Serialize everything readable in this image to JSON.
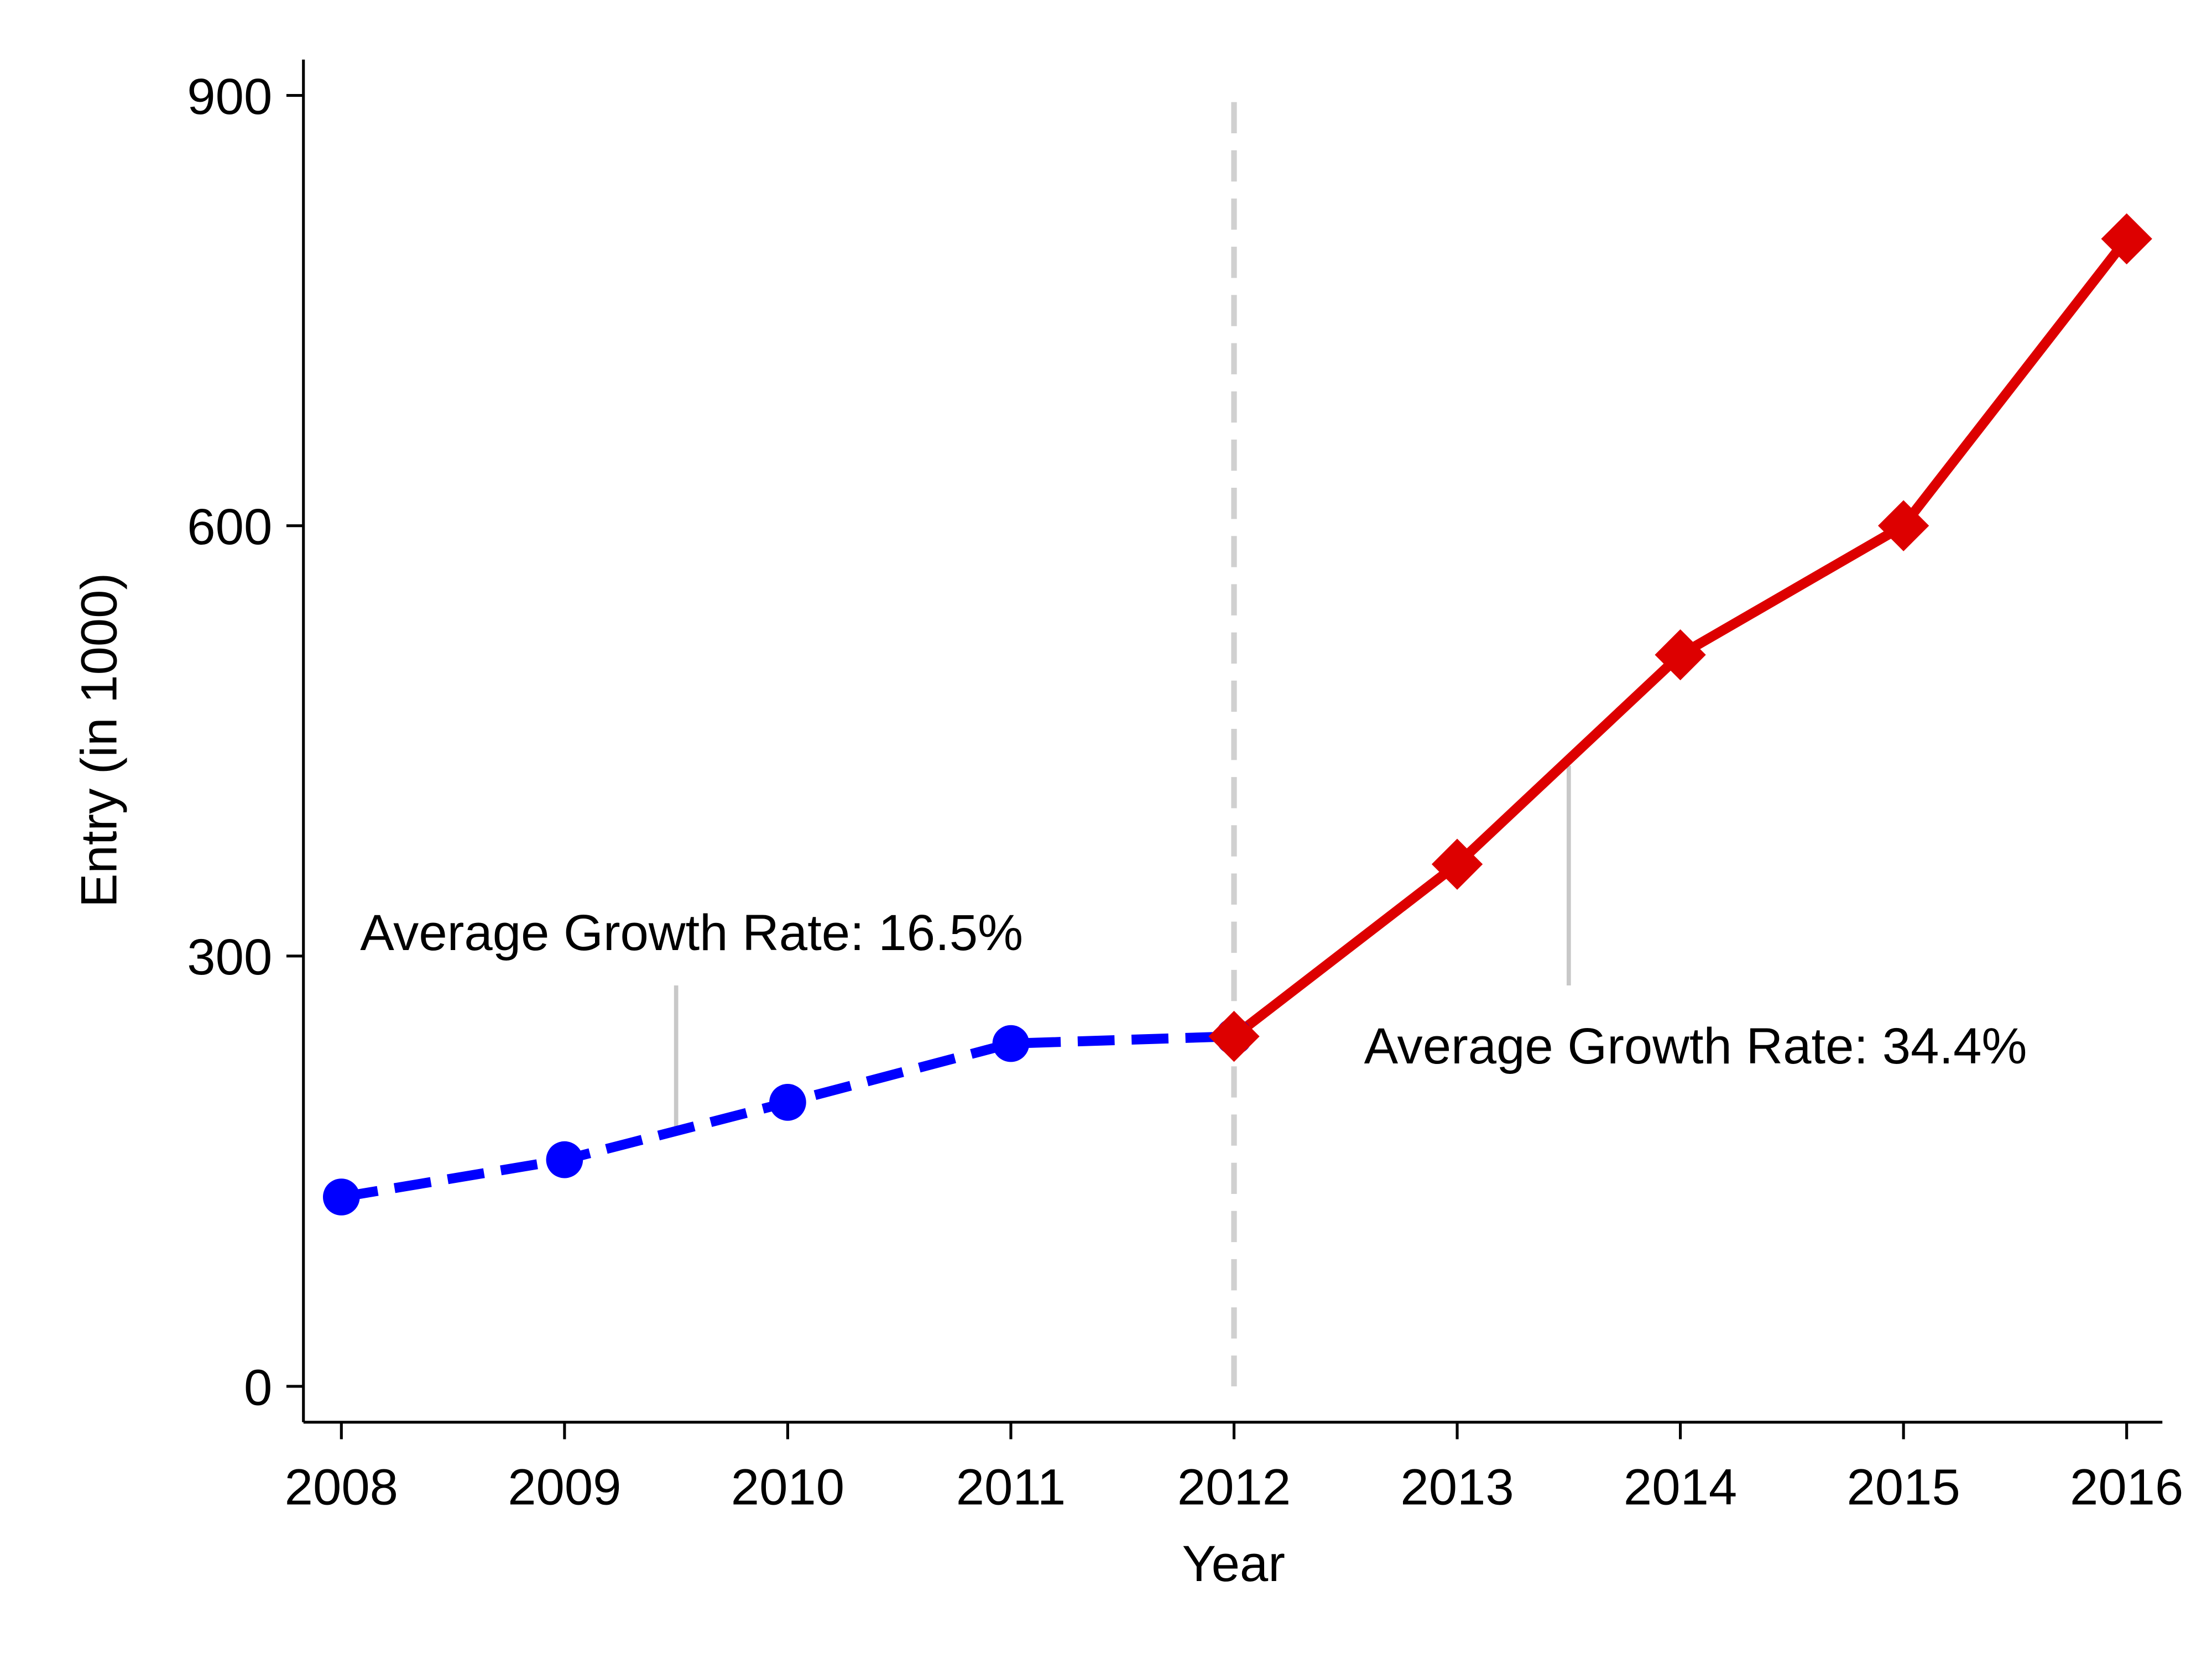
{
  "chart_data": {
    "type": "line",
    "x_label": "Year",
    "y_label": "Entry (in 1000)",
    "x": [
      2008,
      2009,
      2010,
      2011,
      2012,
      2013,
      2014,
      2015,
      2016
    ],
    "series": [
      {
        "color": "#0000ff",
        "style": "dashed",
        "marker": "circle",
        "values": [
          132,
          158,
          198,
          239,
          244,
          null,
          null,
          null,
          null
        ]
      },
      {
        "color": "#dd0000",
        "style": "solid",
        "marker": "diamond",
        "values": [
          null,
          null,
          null,
          null,
          244,
          364,
          510,
          600,
          800
        ]
      }
    ],
    "xlim": [
      2007.83,
      2016.16
    ],
    "ylim": [
      -25,
      925
    ],
    "xticks": [
      2008,
      2009,
      2010,
      2011,
      2012,
      2013,
      2014,
      2015,
      2016
    ],
    "yticks": [
      0,
      300,
      600,
      900
    ],
    "vline": 2012,
    "annotations": [
      "Average Growth Rate: 16.5%",
      "Average Growth Rate: 34.4%"
    ]
  }
}
